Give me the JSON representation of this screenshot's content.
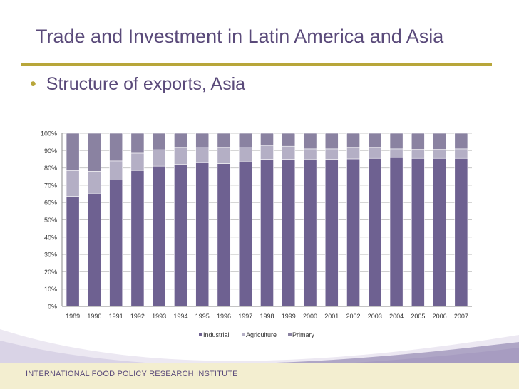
{
  "slide": {
    "title": "Trade and Investment in Latin America and Asia",
    "bullet": "Structure of exports, Asia",
    "footer": "INTERNATIONAL FOOD POLICY RESEARCH INSTITUTE"
  },
  "colors": {
    "industrial": "#6e6191",
    "agriculture": "#b4afc5",
    "primary": "#8a82a1",
    "accent": "#b8a63a",
    "title": "#5a4a7a"
  },
  "chart_data": {
    "type": "bar",
    "stacked": true,
    "percent": true,
    "categories": [
      "1989",
      "1990",
      "1991",
      "1992",
      "1993",
      "1994",
      "1995",
      "1996",
      "1997",
      "1998",
      "1999",
      "2000",
      "2001",
      "2002",
      "2003",
      "2004",
      "2005",
      "2006",
      "2007"
    ],
    "series": [
      {
        "name": "Industrial",
        "values": [
          63.5,
          65,
          73,
          78.5,
          81,
          82,
          83,
          82.5,
          83.5,
          85,
          85,
          84.8,
          85,
          85.2,
          85.5,
          86,
          85.5,
          85.5,
          85.5
        ]
      },
      {
        "name": "Agriculture",
        "values": [
          15,
          13,
          11,
          10,
          9.5,
          9.5,
          9,
          9,
          8.5,
          8,
          7.5,
          6.2,
          6,
          6.3,
          6,
          5,
          5.2,
          5.2,
          5.5
        ]
      },
      {
        "name": "Primary",
        "values": [
          21.5,
          22,
          16,
          11.5,
          9.5,
          8.5,
          8,
          8.5,
          8,
          7,
          7.5,
          9,
          9,
          8.5,
          8.5,
          9,
          9.3,
          9.3,
          9
        ]
      }
    ],
    "yticks": [
      "0%",
      "10%",
      "20%",
      "30%",
      "40%",
      "50%",
      "60%",
      "70%",
      "80%",
      "90%",
      "100%"
    ],
    "ylim": [
      0,
      100
    ],
    "grid": true,
    "legend": "bottom"
  }
}
